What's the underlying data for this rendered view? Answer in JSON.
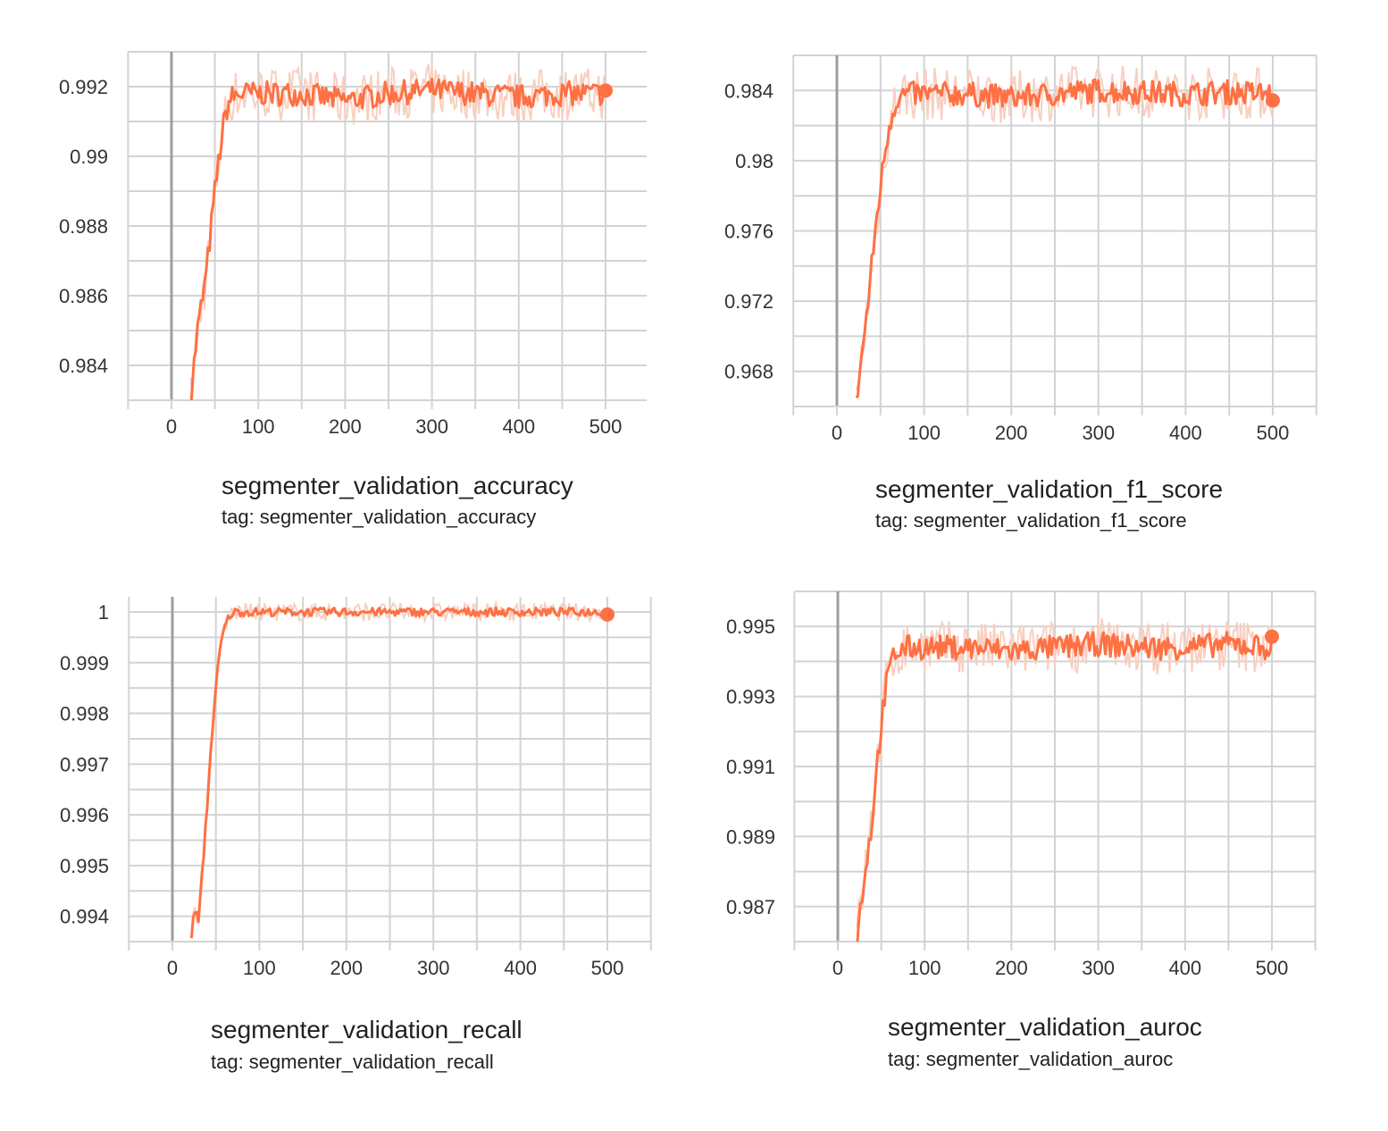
{
  "colors": {
    "series": "#ff7043",
    "raw": "#f8cfc0",
    "grid": "#d3d3d3",
    "zero_line": "#9e9e9e"
  },
  "chart_data": [
    {
      "type": "line",
      "title": "segmenter_validation_accuracy",
      "tag": "tag: segmenter_validation_accuracy",
      "x_ticks": [
        0,
        100,
        200,
        300,
        400,
        500
      ],
      "y_ticks": [
        "0.984",
        "0.986",
        "0.988",
        "0.99",
        "0.992"
      ],
      "xlim": [
        -50,
        550
      ],
      "ylim": [
        0.983,
        0.993
      ],
      "grid": true,
      "series": [
        {
          "x": [
            22,
            25,
            30,
            35,
            40,
            45,
            50,
            55,
            60,
            65,
            70,
            80,
            100,
            150,
            200,
            250,
            300,
            350,
            400,
            450,
            500
          ],
          "y": [
            0.983,
            0.9838,
            0.985,
            0.9858,
            0.9866,
            0.9878,
            0.989,
            0.99,
            0.9909,
            0.9915,
            0.9917,
            0.9918,
            0.9918,
            0.9918,
            0.9916,
            0.9918,
            0.9919,
            0.9918,
            0.9917,
            0.9918,
            0.9918
          ]
        }
      ]
    },
    {
      "type": "line",
      "title": "segmenter_validation_f1_score",
      "tag": "tag: segmenter_validation_f1_score",
      "x_ticks": [
        0,
        100,
        200,
        300,
        400,
        500
      ],
      "y_ticks": [
        "0.968",
        "0.972",
        "0.976",
        "0.98",
        "0.984"
      ],
      "xlim": [
        -50,
        550
      ],
      "ylim": [
        0.966,
        0.986
      ],
      "grid": true,
      "series": [
        {
          "x": [
            22,
            25,
            30,
            35,
            40,
            45,
            50,
            55,
            60,
            65,
            70,
            80,
            100,
            150,
            200,
            250,
            300,
            350,
            400,
            450,
            500
          ],
          "y": [
            0.966,
            0.9675,
            0.9695,
            0.9715,
            0.974,
            0.9765,
            0.9785,
            0.9805,
            0.982,
            0.983,
            0.9836,
            0.9838,
            0.9838,
            0.9838,
            0.9836,
            0.9838,
            0.984,
            0.9839,
            0.9838,
            0.9839,
            0.9838
          ]
        }
      ]
    },
    {
      "type": "line",
      "title": "segmenter_validation_recall",
      "tag": "tag: segmenter_validation_recall",
      "x_ticks": [
        0,
        100,
        200,
        300,
        400,
        500
      ],
      "y_ticks": [
        "0.994",
        "0.995",
        "0.996",
        "0.997",
        "0.998",
        "0.999",
        "1"
      ],
      "xlim": [
        -50,
        550
      ],
      "ylim": [
        0.9935,
        1.0003
      ],
      "grid": true,
      "series": [
        {
          "x": [
            22,
            25,
            30,
            35,
            40,
            45,
            50,
            55,
            60,
            65,
            70,
            80,
            100,
            150,
            200,
            250,
            300,
            350,
            400,
            450,
            500
          ],
          "y": [
            0.9935,
            0.9942,
            0.9939,
            0.995,
            0.9962,
            0.9975,
            0.9985,
            0.9993,
            0.9997,
            0.9999,
            1.0,
            1.0,
            1.0,
            1.0,
            1.0,
            1.0,
            1.0,
            1.0,
            1.0,
            1.0,
            1.0
          ]
        }
      ]
    },
    {
      "type": "line",
      "title": "segmenter_validation_auroc",
      "tag": "tag: segmenter_validation_auroc",
      "x_ticks": [
        0,
        100,
        200,
        300,
        400,
        500
      ],
      "y_ticks": [
        "0.987",
        "0.989",
        "0.991",
        "0.993",
        "0.995"
      ],
      "xlim": [
        -50,
        550
      ],
      "ylim": [
        0.986,
        0.996
      ],
      "grid": true,
      "series": [
        {
          "x": [
            22,
            25,
            30,
            35,
            40,
            45,
            50,
            55,
            60,
            65,
            70,
            80,
            100,
            150,
            200,
            250,
            300,
            350,
            400,
            450,
            500
          ],
          "y": [
            0.986,
            0.9867,
            0.9878,
            0.9886,
            0.9896,
            0.991,
            0.9922,
            0.9932,
            0.9938,
            0.9942,
            0.9943,
            0.9944,
            0.9944,
            0.9944,
            0.9943,
            0.9944,
            0.9945,
            0.9944,
            0.9944,
            0.9945,
            0.9944
          ]
        }
      ]
    }
  ]
}
